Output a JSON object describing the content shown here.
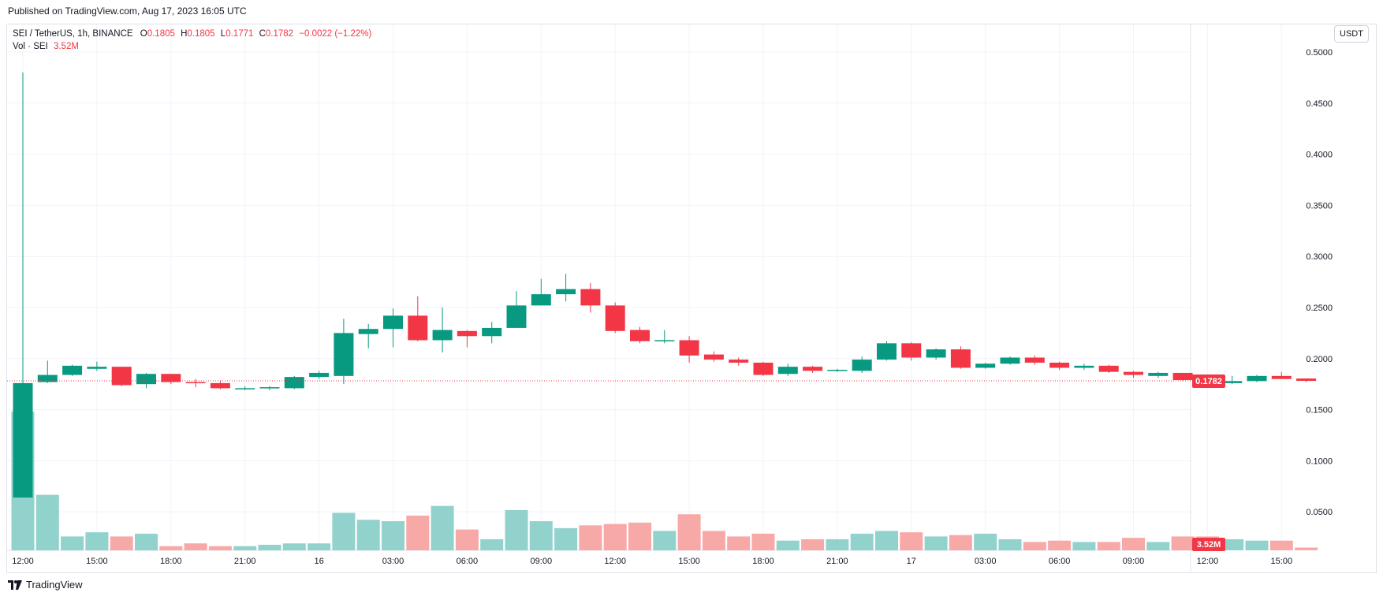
{
  "header": {
    "published": "Published on TradingView.com, Aug 17, 2023 16:05 UTC"
  },
  "legend": {
    "symbol": "SEI / TetherUS, 1h, BINANCE",
    "o_label": "O",
    "o_value": "0.1805",
    "h_label": "H",
    "h_value": "0.1805",
    "l_label": "L",
    "l_value": "0.1771",
    "c_label": "C",
    "c_value": "0.1782",
    "change": "−0.0022 (−1.22%)",
    "vol_label": "Vol · SEI",
    "vol_value": "3.52M"
  },
  "toolbar": {
    "unit_label": "USDT"
  },
  "footer": {
    "brand": "TradingView",
    "logo_icon": "tradingview-logo-icon"
  },
  "chart_data": {
    "type": "candlestick",
    "symbol": "SEI / TetherUS",
    "interval": "1h",
    "exchange": "BINANCE",
    "y_axis": {
      "ticks": [
        "0.5000",
        "0.4500",
        "0.4000",
        "0.3500",
        "0.3000",
        "0.2500",
        "0.2000",
        "0.1500",
        "0.1000",
        "0.0500"
      ],
      "range": [
        0.0,
        0.5
      ],
      "position": "right"
    },
    "x_axis": {
      "ticks": [
        {
          "label": "12:00",
          "index": 0
        },
        {
          "label": "15:00",
          "index": 3
        },
        {
          "label": "18:00",
          "index": 6
        },
        {
          "label": "21:00",
          "index": 9
        },
        {
          "label": "16",
          "index": 12
        },
        {
          "label": "03:00",
          "index": 15
        },
        {
          "label": "06:00",
          "index": 18
        },
        {
          "label": "09:00",
          "index": 21
        },
        {
          "label": "12:00",
          "index": 24
        },
        {
          "label": "15:00",
          "index": 27
        },
        {
          "label": "18:00",
          "index": 30
        },
        {
          "label": "21:00",
          "index": 33
        },
        {
          "label": "17",
          "index": 36
        },
        {
          "label": "03:00",
          "index": 39
        },
        {
          "label": "06:00",
          "index": 42
        },
        {
          "label": "09:00",
          "index": 45
        },
        {
          "label": "12:00",
          "index": 48
        },
        {
          "label": "15:00",
          "index": 51
        }
      ]
    },
    "last_price": "0.1782",
    "last_volume": "3.52M",
    "grid": true,
    "colors": {
      "up": "#089981",
      "down": "#f23645",
      "vol_up": "#92d2cc",
      "vol_down": "#f7a9a7",
      "grid": "#f0f3fa"
    },
    "candles": [
      {
        "o": 0.064,
        "h": 0.48,
        "l": 0.064,
        "c": 0.176,
        "v": 1.0
      },
      {
        "o": 0.177,
        "h": 0.198,
        "l": 0.176,
        "c": 0.184,
        "v": 0.4
      },
      {
        "o": 0.184,
        "h": 0.194,
        "l": 0.183,
        "c": 0.193,
        "v": 0.1
      },
      {
        "o": 0.19,
        "h": 0.197,
        "l": 0.188,
        "c": 0.192,
        "v": 0.13
      },
      {
        "o": 0.192,
        "h": 0.192,
        "l": 0.173,
        "c": 0.174,
        "v": 0.1
      },
      {
        "o": 0.175,
        "h": 0.186,
        "l": 0.171,
        "c": 0.185,
        "v": 0.12
      },
      {
        "o": 0.185,
        "h": 0.185,
        "l": 0.175,
        "c": 0.177,
        "v": 0.03
      },
      {
        "o": 0.177,
        "h": 0.18,
        "l": 0.172,
        "c": 0.176,
        "v": 0.05
      },
      {
        "o": 0.176,
        "h": 0.178,
        "l": 0.17,
        "c": 0.171,
        "v": 0.03
      },
      {
        "o": 0.171,
        "h": 0.173,
        "l": 0.169,
        "c": 0.171,
        "v": 0.03
      },
      {
        "o": 0.171,
        "h": 0.173,
        "l": 0.169,
        "c": 0.172,
        "v": 0.04
      },
      {
        "o": 0.171,
        "h": 0.183,
        "l": 0.17,
        "c": 0.182,
        "v": 0.05
      },
      {
        "o": 0.182,
        "h": 0.188,
        "l": 0.18,
        "c": 0.186,
        "v": 0.05
      },
      {
        "o": 0.183,
        "h": 0.239,
        "l": 0.175,
        "c": 0.225,
        "v": 0.27
      },
      {
        "o": 0.224,
        "h": 0.234,
        "l": 0.21,
        "c": 0.229,
        "v": 0.22
      },
      {
        "o": 0.229,
        "h": 0.249,
        "l": 0.211,
        "c": 0.242,
        "v": 0.21
      },
      {
        "o": 0.242,
        "h": 0.261,
        "l": 0.217,
        "c": 0.218,
        "v": 0.25
      },
      {
        "o": 0.218,
        "h": 0.25,
        "l": 0.206,
        "c": 0.228,
        "v": 0.32
      },
      {
        "o": 0.227,
        "h": 0.228,
        "l": 0.211,
        "c": 0.222,
        "v": 0.15
      },
      {
        "o": 0.222,
        "h": 0.236,
        "l": 0.215,
        "c": 0.23,
        "v": 0.08
      },
      {
        "o": 0.23,
        "h": 0.266,
        "l": 0.23,
        "c": 0.252,
        "v": 0.29
      },
      {
        "o": 0.252,
        "h": 0.278,
        "l": 0.252,
        "c": 0.263,
        "v": 0.21
      },
      {
        "o": 0.263,
        "h": 0.283,
        "l": 0.256,
        "c": 0.268,
        "v": 0.16
      },
      {
        "o": 0.268,
        "h": 0.274,
        "l": 0.245,
        "c": 0.252,
        "v": 0.18
      },
      {
        "o": 0.252,
        "h": 0.255,
        "l": 0.225,
        "c": 0.227,
        "v": 0.19
      },
      {
        "o": 0.228,
        "h": 0.231,
        "l": 0.215,
        "c": 0.217,
        "v": 0.2
      },
      {
        "o": 0.217,
        "h": 0.228,
        "l": 0.215,
        "c": 0.218,
        "v": 0.14
      },
      {
        "o": 0.218,
        "h": 0.222,
        "l": 0.196,
        "c": 0.203,
        "v": 0.26
      },
      {
        "o": 0.204,
        "h": 0.207,
        "l": 0.197,
        "c": 0.199,
        "v": 0.14
      },
      {
        "o": 0.199,
        "h": 0.201,
        "l": 0.193,
        "c": 0.196,
        "v": 0.1
      },
      {
        "o": 0.196,
        "h": 0.197,
        "l": 0.183,
        "c": 0.184,
        "v": 0.12
      },
      {
        "o": 0.185,
        "h": 0.195,
        "l": 0.183,
        "c": 0.192,
        "v": 0.07
      },
      {
        "o": 0.192,
        "h": 0.193,
        "l": 0.186,
        "c": 0.188,
        "v": 0.08
      },
      {
        "o": 0.188,
        "h": 0.19,
        "l": 0.187,
        "c": 0.189,
        "v": 0.08
      },
      {
        "o": 0.188,
        "h": 0.202,
        "l": 0.186,
        "c": 0.199,
        "v": 0.12
      },
      {
        "o": 0.199,
        "h": 0.217,
        "l": 0.198,
        "c": 0.215,
        "v": 0.14
      },
      {
        "o": 0.215,
        "h": 0.216,
        "l": 0.198,
        "c": 0.201,
        "v": 0.13
      },
      {
        "o": 0.201,
        "h": 0.21,
        "l": 0.199,
        "c": 0.209,
        "v": 0.1
      },
      {
        "o": 0.209,
        "h": 0.212,
        "l": 0.19,
        "c": 0.191,
        "v": 0.11
      },
      {
        "o": 0.191,
        "h": 0.196,
        "l": 0.19,
        "c": 0.195,
        "v": 0.12
      },
      {
        "o": 0.195,
        "h": 0.202,
        "l": 0.194,
        "c": 0.201,
        "v": 0.08
      },
      {
        "o": 0.201,
        "h": 0.203,
        "l": 0.194,
        "c": 0.196,
        "v": 0.06
      },
      {
        "o": 0.196,
        "h": 0.197,
        "l": 0.189,
        "c": 0.191,
        "v": 0.07
      },
      {
        "o": 0.191,
        "h": 0.195,
        "l": 0.189,
        "c": 0.193,
        "v": 0.06
      },
      {
        "o": 0.193,
        "h": 0.194,
        "l": 0.186,
        "c": 0.187,
        "v": 0.06
      },
      {
        "o": 0.187,
        "h": 0.188,
        "l": 0.181,
        "c": 0.184,
        "v": 0.09
      },
      {
        "o": 0.183,
        "h": 0.187,
        "l": 0.181,
        "c": 0.186,
        "v": 0.06
      },
      {
        "o": 0.186,
        "h": 0.186,
        "l": 0.178,
        "c": 0.179,
        "v": 0.1
      },
      {
        "o": 0.179,
        "h": 0.18,
        "l": 0.172,
        "c": 0.176,
        "v": 0.1
      },
      {
        "o": 0.176,
        "h": 0.183,
        "l": 0.175,
        "c": 0.178,
        "v": 0.08
      },
      {
        "o": 0.178,
        "h": 0.184,
        "l": 0.177,
        "c": 0.183,
        "v": 0.07
      },
      {
        "o": 0.183,
        "h": 0.187,
        "l": 0.18,
        "c": 0.18,
        "v": 0.07
      },
      {
        "o": 0.1805,
        "h": 0.1805,
        "l": 0.1771,
        "c": 0.1782,
        "v": 0.02
      }
    ]
  }
}
